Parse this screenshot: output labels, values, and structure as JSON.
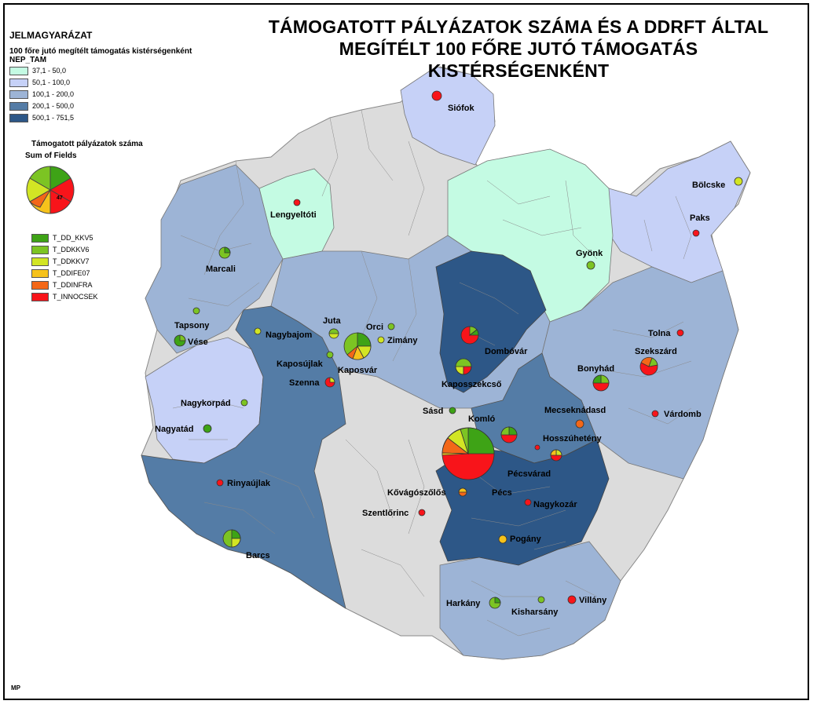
{
  "title_line1": "TÁMOGATOTT PÁLYÁZATOK SZÁMA ÉS A DDRFT ÁLTAL",
  "title_line2": "MEGÍTÉLT 100 FŐRE JUTÓ TÁMOGATÁS KISTÉRSÉGENKÉNT",
  "legend": {
    "heading": "JELMAGYARÁZAT",
    "subtitle": "100 főre jutó megítélt támogatás kistérségenként",
    "field": "NEP_TAM",
    "classes": [
      {
        "label": "37,1 - 50,0",
        "color": "#c4fbe3"
      },
      {
        "label": "50,1 - 100,0",
        "color": "#c6d1f7"
      },
      {
        "label": "100,1 - 200,0",
        "color": "#9db4d6"
      },
      {
        "label": "200,1 - 500,0",
        "color": "#547ca6"
      },
      {
        "label": "500,1 - 751,5",
        "color": "#2d5787"
      }
    ],
    "pie_title": "Támogatott pályázatok száma",
    "pie_sub": "Sum of Fields",
    "pie_sample_value": "47",
    "categories": [
      {
        "label": "T_DD_KKV5",
        "color": "#3ea316"
      },
      {
        "label": "T_DDKKV6",
        "color": "#7cc423"
      },
      {
        "label": "T_DDKKV7",
        "color": "#d2e524"
      },
      {
        "label": "T_DDIFE07",
        "color": "#f6c21b"
      },
      {
        "label": "T_DDINFRA",
        "color": "#f36718"
      },
      {
        "label": "T_INNOCSEK",
        "color": "#f8141a"
      }
    ]
  },
  "other_color": "#dcdcdc",
  "cities": [
    {
      "name": "Siófok"
    },
    {
      "name": "Bölcske"
    },
    {
      "name": "Lengyeltóti"
    },
    {
      "name": "Paks"
    },
    {
      "name": "Marcali"
    },
    {
      "name": "Gyönk"
    },
    {
      "name": "Tapsony"
    },
    {
      "name": "Juta"
    },
    {
      "name": "Orci"
    },
    {
      "name": "Tolna"
    },
    {
      "name": "Nagybajom"
    },
    {
      "name": "Zimány"
    },
    {
      "name": "Vése"
    },
    {
      "name": "Dombóvár"
    },
    {
      "name": "Szekszárd"
    },
    {
      "name": "Kaposújlak"
    },
    {
      "name": "Kaposvár"
    },
    {
      "name": "Bonyhád"
    },
    {
      "name": "Szenna"
    },
    {
      "name": "Kaposszekcső"
    },
    {
      "name": "Nagykorpád"
    },
    {
      "name": "Mecseknádasd"
    },
    {
      "name": "Sásd"
    },
    {
      "name": "Komló"
    },
    {
      "name": "Várdomb"
    },
    {
      "name": "Nagyatád"
    },
    {
      "name": "Hosszúhetény"
    },
    {
      "name": "Pécsvárad"
    },
    {
      "name": "Rinyaújlak"
    },
    {
      "name": "Kővágószőlős"
    },
    {
      "name": "Pécs"
    },
    {
      "name": "Nagykozár"
    },
    {
      "name": "Szentlőrinc"
    },
    {
      "name": "Barcs"
    },
    {
      "name": "Pogány"
    },
    {
      "name": "Harkány"
    },
    {
      "name": "Kisharsány"
    },
    {
      "name": "Villány"
    }
  ],
  "signature": "MP"
}
